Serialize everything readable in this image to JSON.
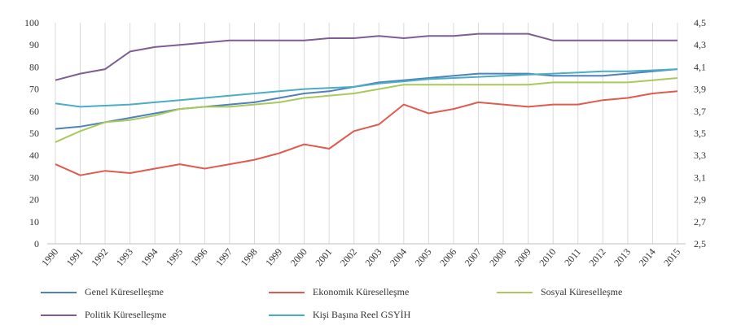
{
  "chart_data": {
    "type": "line",
    "title": "",
    "xlabel": "",
    "ylabel": "",
    "categories": [
      "1990",
      "1991",
      "1992",
      "1993",
      "1994",
      "1995",
      "1996",
      "1997",
      "1998",
      "1999",
      "2000",
      "2001",
      "2002",
      "2003",
      "2004",
      "2005",
      "2006",
      "2007",
      "2008",
      "2009",
      "2010",
      "2011",
      "2012",
      "2013",
      "2014",
      "2015"
    ],
    "ylim_left": [
      0,
      100
    ],
    "yticks_left": [
      "0",
      "10",
      "20",
      "30",
      "40",
      "50",
      "60",
      "70",
      "80",
      "90",
      "100"
    ],
    "ylim_right": [
      2.5,
      4.5
    ],
    "yticks_right": [
      "2,5",
      "2,7",
      "2,9",
      "3,1",
      "3,3",
      "3,5",
      "3,7",
      "3,9",
      "4,1",
      "4,3",
      "4,5"
    ],
    "grid": "vertical",
    "legend_position": "bottom",
    "series": [
      {
        "name": "Genel Küreselleşme",
        "axis": "left",
        "color": "#4f81bd",
        "values": [
          52,
          53,
          55,
          57,
          59,
          61,
          62,
          63,
          64,
          66,
          68,
          69,
          71,
          73,
          74,
          75,
          76,
          77,
          77,
          77,
          76,
          76,
          76,
          77,
          78,
          79
        ]
      },
      {
        "name": "Ekonomik Küreselleşme",
        "axis": "left",
        "color": "#e05a4f",
        "values": [
          36,
          31,
          33,
          32,
          34,
          36,
          34,
          36,
          38,
          41,
          45,
          43,
          51,
          54,
          63,
          59,
          61,
          64,
          63,
          62,
          63,
          63,
          65,
          66,
          68,
          69
        ]
      },
      {
        "name": "Sosyal Küreselleşme",
        "axis": "left",
        "color": "#a9c95a",
        "values": [
          46,
          51,
          55,
          56,
          58,
          61,
          62,
          62,
          63,
          64,
          66,
          67,
          68,
          70,
          72,
          72,
          72,
          72,
          72,
          72,
          73,
          73,
          73,
          73,
          74,
          75
        ]
      },
      {
        "name": "Politik Küreselleşme",
        "axis": "left",
        "color": "#7e5d94",
        "values": [
          74,
          77,
          79,
          87,
          89,
          90,
          91,
          92,
          92,
          92,
          92,
          93,
          93,
          94,
          93,
          94,
          94,
          95,
          95,
          95,
          92,
          92,
          92,
          92,
          92,
          92
        ]
      },
      {
        "name": "Kişi Başına Reel GSYİH",
        "axis": "right",
        "color": "#4bacc6",
        "values": [
          3.77,
          3.74,
          3.75,
          3.76,
          3.78,
          3.8,
          3.82,
          3.84,
          3.86,
          3.88,
          3.9,
          3.91,
          3.92,
          3.95,
          3.97,
          3.99,
          4.0,
          4.01,
          4.02,
          4.03,
          4.04,
          4.05,
          4.06,
          4.06,
          4.07,
          4.08
        ]
      }
    ]
  }
}
